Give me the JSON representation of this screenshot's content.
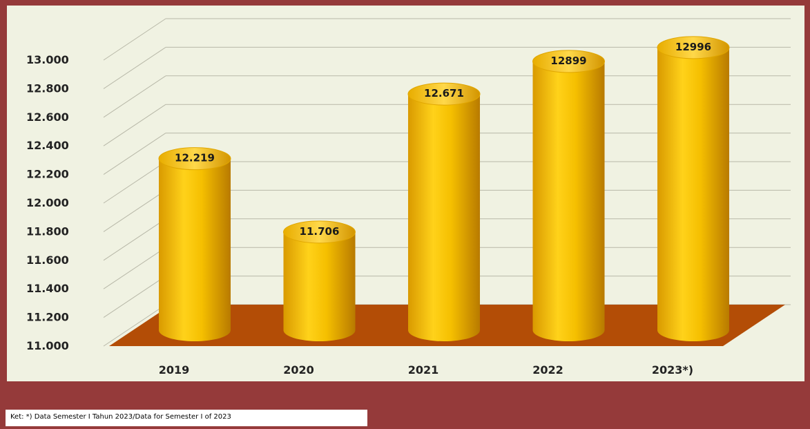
{
  "chart_data": {
    "type": "bar",
    "style": "3d-cylinder",
    "categories": [
      "2019",
      "2020",
      "2021",
      "2022",
      "2023*)"
    ],
    "values": [
      12219,
      11706,
      12671,
      12899,
      12996
    ],
    "data_labels": [
      "12.219",
      "11.706",
      "12.671",
      "12899",
      "12996"
    ],
    "y_ticks": [
      "11.000",
      "11.200",
      "11.400",
      "11.600",
      "11.800",
      "12.000",
      "12.200",
      "12.400",
      "12.600",
      "12.800",
      "13.000"
    ],
    "ylim": [
      11000,
      13000
    ],
    "title": "",
    "xlabel": "",
    "ylabel": "",
    "grid": true,
    "colors": {
      "bar": "#f5c400",
      "bar_shade": "#c98a00",
      "floor": "#b34d06",
      "background": "#f0f2e2",
      "frame": "#953a3a"
    }
  },
  "footnote": "Ket: *) Data Semester I Tahun 2023/Data for Semester I of 2023"
}
